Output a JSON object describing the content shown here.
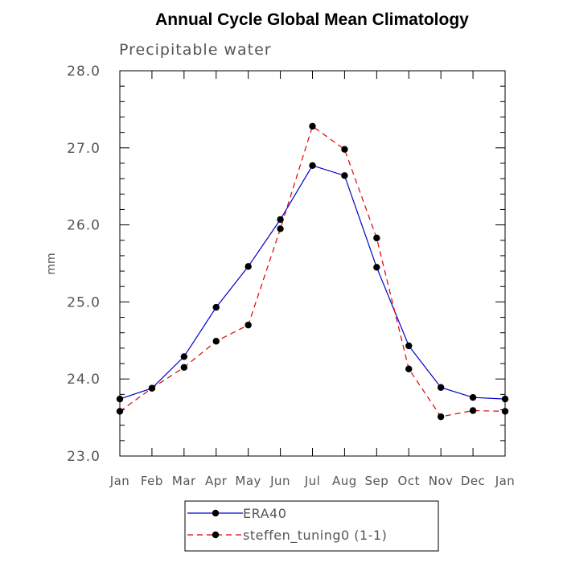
{
  "chart_data": {
    "type": "line",
    "title": "Annual Cycle Global Mean Climatology",
    "subtitle": "Precipitable water",
    "xlabel": "",
    "ylabel": "mm",
    "categories": [
      "Jan",
      "Feb",
      "Mar",
      "Apr",
      "May",
      "Jun",
      "Jul",
      "Aug",
      "Sep",
      "Oct",
      "Nov",
      "Dec",
      "Jan"
    ],
    "ylim": [
      23.0,
      28.0
    ],
    "yticks": [
      "23.0",
      "24.0",
      "25.0",
      "26.0",
      "27.0",
      "28.0"
    ],
    "legend_position": "bottom-center",
    "series": [
      {
        "name": "ERA40",
        "color": "#0000cc",
        "dash": "solid",
        "values": [
          23.74,
          23.88,
          24.29,
          24.93,
          25.46,
          26.07,
          26.77,
          26.64,
          25.45,
          24.43,
          23.89,
          23.76,
          23.74
        ]
      },
      {
        "name": "steffen_tuning0 (1-1)",
        "color": "#dd0000",
        "dash": "dashed",
        "values": [
          23.58,
          23.88,
          24.15,
          24.49,
          24.7,
          25.95,
          27.28,
          26.98,
          25.83,
          24.13,
          23.51,
          23.59,
          23.58
        ]
      }
    ]
  }
}
